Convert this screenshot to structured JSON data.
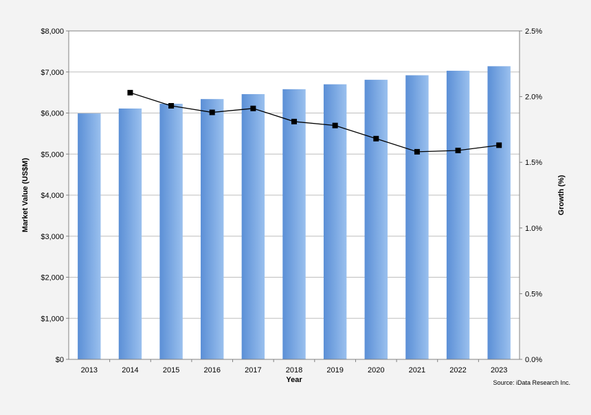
{
  "chart_data": {
    "type": "bar",
    "categories": [
      "2013",
      "2014",
      "2015",
      "2016",
      "2017",
      "2018",
      "2019",
      "2020",
      "2021",
      "2022",
      "2023"
    ],
    "series": [
      {
        "type": "bar",
        "axis": "left",
        "values": [
          5990,
          6110,
          6225,
          6340,
          6460,
          6580,
          6700,
          6810,
          6920,
          7030,
          7140
        ]
      },
      {
        "type": "line",
        "axis": "right",
        "values": [
          null,
          2.03,
          1.93,
          1.88,
          1.91,
          1.81,
          1.78,
          1.68,
          1.58,
          1.59,
          1.63
        ]
      }
    ],
    "xlabel": "Year",
    "ylabel": "Market Value (US$M)",
    "y2label": "Growth (%)",
    "ylim": [
      0,
      8000
    ],
    "y2lim": [
      0,
      2.5
    ],
    "y_ticks": [
      "$0",
      "$1,000",
      "$2,000",
      "$3,000",
      "$4,000",
      "$5,000",
      "$6,000",
      "$7,000",
      "$8,000"
    ],
    "y2_ticks": [
      "0.0%",
      "0.5%",
      "1.0%",
      "1.5%",
      "2.0%",
      "2.5%"
    ],
    "grid": true,
    "legend": "none",
    "source": "Source: iData Research Inc.",
    "colors": {
      "bar_dark": "#5b8fd6",
      "bar_light": "#9ac0ee",
      "line": "#000000",
      "marker": "#000000",
      "grid": "#bdbdbd",
      "plot_bg": "#ffffff"
    }
  }
}
